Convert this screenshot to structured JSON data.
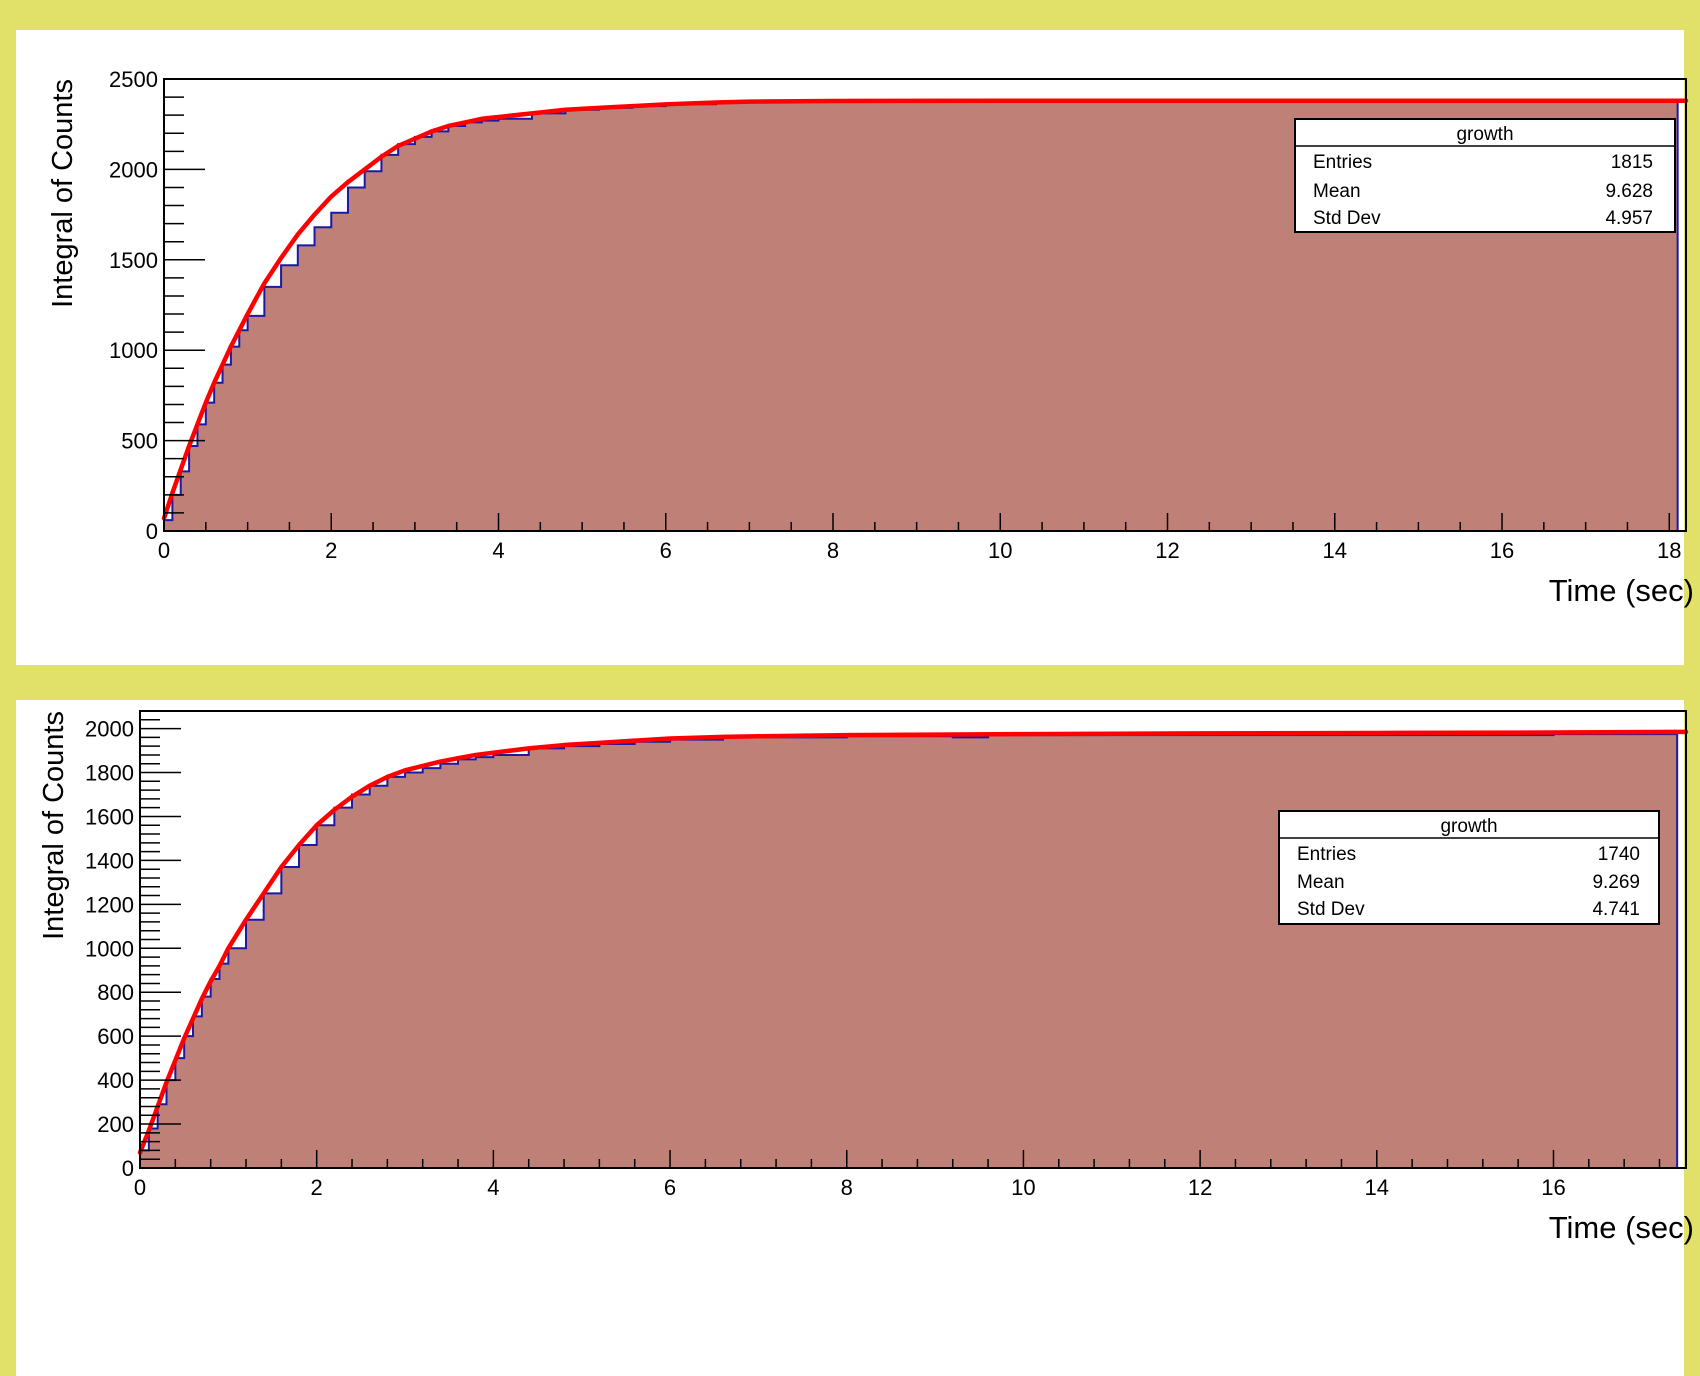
{
  "colors": {
    "frame": "#e1e16a",
    "pad": "#ffffff",
    "fill": "#bf8077",
    "histogram_line": "#1a1aa6",
    "fit_line": "#ff0000",
    "axis": "#000000"
  },
  "chart_data": [
    {
      "type": "area",
      "xlabel": "Time (sec)",
      "ylabel": "Integral of Counts",
      "xlim": [
        0,
        18.2
      ],
      "ylim": [
        0,
        2500
      ],
      "xticks": [
        0,
        2,
        4,
        6,
        8,
        10,
        12,
        14,
        16,
        18
      ],
      "xtick_labels": [
        "0",
        "2",
        "4",
        "6",
        "8",
        "10",
        "12",
        "14",
        "16",
        "18"
      ],
      "yticks": [
        0,
        500,
        1000,
        1500,
        2000,
        2500
      ],
      "ytick_labels": [
        "0",
        "500",
        "1000",
        "1500",
        "2000",
        "2500"
      ],
      "x_minor_step": 0.5,
      "y_minor_step": 100,
      "histogram_x": [
        0,
        0.1,
        0.2,
        0.3,
        0.4,
        0.5,
        0.6,
        0.7,
        0.8,
        0.9,
        1.0,
        1.2,
        1.4,
        1.6,
        1.8,
        2.0,
        2.2,
        2.4,
        2.6,
        2.8,
        3.0,
        3.2,
        3.4,
        3.6,
        3.8,
        4.0,
        4.4,
        4.8,
        5.2,
        5.6,
        6.0,
        6.6,
        7.0,
        8.0,
        10.0,
        12.0,
        14.0,
        16.0,
        18.0,
        18.1
      ],
      "histogram_y": [
        60,
        200,
        330,
        470,
        590,
        710,
        820,
        920,
        1020,
        1110,
        1190,
        1350,
        1470,
        1580,
        1680,
        1760,
        1900,
        1990,
        2080,
        2140,
        2180,
        2210,
        2240,
        2260,
        2270,
        2280,
        2310,
        2330,
        2340,
        2350,
        2360,
        2370,
        2375,
        2375,
        2375,
        2375,
        2375,
        2375,
        2375,
        2375
      ],
      "fit": {
        "name": "",
        "x": [
          0,
          0.1,
          0.2,
          0.3,
          0.4,
          0.5,
          0.6,
          0.7,
          0.8,
          0.9,
          1.0,
          1.2,
          1.4,
          1.6,
          1.8,
          2.0,
          2.2,
          2.4,
          2.6,
          2.8,
          3.0,
          3.2,
          3.4,
          3.6,
          3.8,
          4.0,
          4.4,
          4.8,
          5.2,
          5.6,
          6.0,
          6.6,
          7.0,
          8.0,
          10.0,
          12.0,
          14.0,
          16.0,
          18.2
        ],
        "y": [
          70,
          210,
          340,
          470,
          590,
          710,
          820,
          920,
          1020,
          1110,
          1200,
          1370,
          1510,
          1640,
          1750,
          1850,
          1930,
          2000,
          2070,
          2130,
          2170,
          2210,
          2240,
          2260,
          2280,
          2290,
          2310,
          2330,
          2340,
          2350,
          2360,
          2370,
          2375,
          2378,
          2380,
          2380,
          2380,
          2380,
          2380
        ]
      },
      "stats": {
        "title": "growth",
        "rows": [
          {
            "label": "Entries",
            "value": "1815"
          },
          {
            "label": "Mean",
            "value": "9.628"
          },
          {
            "label": "Std Dev",
            "value": "4.957"
          }
        ]
      }
    },
    {
      "type": "area",
      "xlabel": "Time (sec)",
      "ylabel": "Integral of Counts",
      "xlim": [
        0,
        17.5
      ],
      "ylim": [
        0,
        2080
      ],
      "xticks": [
        0,
        2,
        4,
        6,
        8,
        10,
        12,
        14,
        16
      ],
      "xtick_labels": [
        "0",
        "2",
        "4",
        "6",
        "8",
        "10",
        "12",
        "14",
        "16"
      ],
      "yticks": [
        0,
        200,
        400,
        600,
        800,
        1000,
        1200,
        1400,
        1600,
        1800,
        2000
      ],
      "ytick_labels": [
        "0",
        "200",
        "400",
        "600",
        "800",
        "1000",
        "1200",
        "1400",
        "1600",
        "1800",
        "2000"
      ],
      "x_minor_step": 0.4,
      "y_minor_step": 40,
      "histogram_x": [
        0,
        0.1,
        0.2,
        0.3,
        0.4,
        0.5,
        0.6,
        0.7,
        0.8,
        0.9,
        1.0,
        1.2,
        1.4,
        1.6,
        1.8,
        2.0,
        2.2,
        2.4,
        2.6,
        2.8,
        3.0,
        3.2,
        3.4,
        3.6,
        3.8,
        4.0,
        4.4,
        4.8,
        5.2,
        5.6,
        6.0,
        6.6,
        7.0,
        8.0,
        9.2,
        9.6,
        10.0,
        12.0,
        14.0,
        16.0,
        17.3,
        17.4
      ],
      "histogram_y": [
        80,
        180,
        290,
        400,
        500,
        600,
        690,
        780,
        860,
        930,
        1000,
        1130,
        1250,
        1370,
        1470,
        1560,
        1640,
        1700,
        1740,
        1780,
        1800,
        1820,
        1840,
        1860,
        1870,
        1880,
        1910,
        1920,
        1930,
        1940,
        1950,
        1960,
        1960,
        1965,
        1960,
        1970,
        1970,
        1970,
        1970,
        1975,
        1975,
        1975
      ],
      "fit": {
        "name": "",
        "x": [
          0,
          0.1,
          0.2,
          0.3,
          0.4,
          0.5,
          0.6,
          0.7,
          0.8,
          0.9,
          1.0,
          1.2,
          1.4,
          1.6,
          1.8,
          2.0,
          2.2,
          2.4,
          2.6,
          2.8,
          3.0,
          3.2,
          3.4,
          3.6,
          3.8,
          4.0,
          4.4,
          4.8,
          5.2,
          5.6,
          6.0,
          6.6,
          7.0,
          8.0,
          10.0,
          12.0,
          14.0,
          16.0,
          17.5
        ],
        "y": [
          70,
          170,
          280,
          390,
          490,
          590,
          680,
          770,
          850,
          920,
          1000,
          1130,
          1250,
          1370,
          1470,
          1560,
          1630,
          1690,
          1740,
          1780,
          1810,
          1830,
          1850,
          1865,
          1880,
          1890,
          1910,
          1925,
          1935,
          1945,
          1955,
          1962,
          1965,
          1970,
          1975,
          1978,
          1980,
          1982,
          1985
        ]
      },
      "stats": {
        "title": "growth",
        "rows": [
          {
            "label": "Entries",
            "value": "1740"
          },
          {
            "label": "Mean",
            "value": "9.269"
          },
          {
            "label": "Std Dev",
            "value": "4.741"
          }
        ]
      }
    }
  ]
}
